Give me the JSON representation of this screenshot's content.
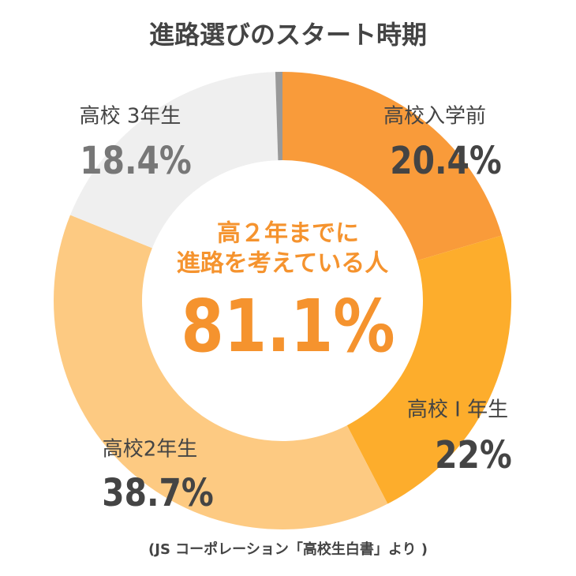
{
  "chart_data": {
    "type": "donut",
    "title": "進路選びのスタート時期",
    "categories": [
      "高校入学前",
      "高校 I 年生",
      "高校2年生",
      "高校 3年生",
      null
    ],
    "values": [
      20.4,
      22,
      38.7,
      18.4,
      0.5
    ],
    "value_labels": [
      "20.4%",
      "22%",
      "38.7%",
      "18.4%",
      null
    ],
    "colors": [
      "#f99b3a",
      "#fdad2c",
      "#fdca82",
      "#efefef",
      "#999999"
    ],
    "center_text": [
      "高２年までに",
      "進路を考えている人",
      "81.1%"
    ],
    "source": "(JS コーポレーション「高校生白書」より )"
  }
}
